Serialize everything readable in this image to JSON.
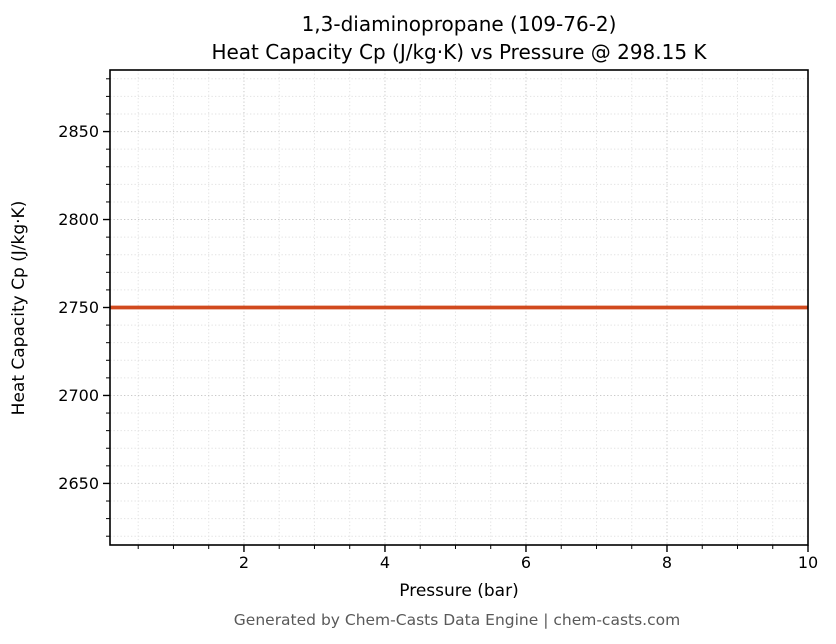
{
  "title_line1": "1,3-diaminopropane (109-76-2)",
  "title_line2": "Heat Capacity Cp (J/kg·K) vs Pressure @ 298.15 K",
  "footer": "Generated by Chem-Casts Data Engine | chem-casts.com",
  "colors": {
    "series_line": "#d14a1e",
    "grid_major": "#c9c9c9",
    "grid_minor": "#e2e2e2",
    "axis": "#000000",
    "footer_text": "#595959"
  },
  "chart_data": {
    "type": "line",
    "title": "1,3-diaminopropane (109-76-2)\nHeat Capacity Cp (J/kg·K) vs Pressure @ 298.15 K",
    "xlabel": "Pressure (bar)",
    "ylabel": "Heat Capacity Cp (J/kg·K)",
    "xlim": [
      0.1,
      10
    ],
    "ylim": [
      2615,
      2885
    ],
    "x_ticks": [
      2,
      4,
      6,
      8,
      10
    ],
    "y_ticks": [
      2650,
      2700,
      2750,
      2800,
      2850
    ],
    "x_minor_step": 0.5,
    "y_minor_step": 10,
    "grid": true,
    "legend_position": "none",
    "series": [
      {
        "name": "Heat Capacity Cp",
        "color": "#d14a1e",
        "x": [
          0.1,
          1,
          2,
          3,
          4,
          5,
          6,
          7,
          8,
          9,
          10
        ],
        "y": [
          2750,
          2750,
          2750,
          2750,
          2750,
          2750,
          2750,
          2750,
          2750,
          2750,
          2750
        ]
      }
    ]
  }
}
